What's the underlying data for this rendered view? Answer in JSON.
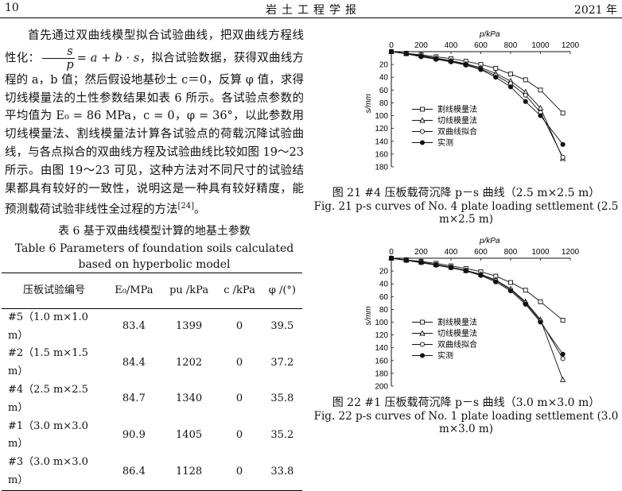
{
  "header": {
    "page": "10",
    "journal": "岩土工程学报",
    "year": "2021 年"
  },
  "body": {
    "p1a": "首先通过双曲线模型拟合试验曲线，把双曲线方程线性化：",
    "frac_num": "s",
    "frac_den": "p",
    "p1b": "= a + b · s",
    "p1c": "，拟合试验数据，获得双曲线方程的 a，b 值；然后假设地基砂土 c＝0，反算 φ 值，求得切线模量法的土性参数结果如表 6 所示。各试验点参数的平均值为 E₀ = 86 MPa，c = 0，φ = 36°，以此参数用切线模量法、割线模量法计算各试验点的荷载沉降试验曲线，与各点拟合的双曲线方程及试验曲线比较如图 19～23 所示。由图 19～23 可见，这种方法对不同尺寸的试验结果都具有较好的一致性，说明这是一种具有较好精度，能预测载荷试验非线性全过程的方法",
    "ref": "[24]",
    "end": "。"
  },
  "table6": {
    "caption_cn": "表 6  基于双曲线模型计算的地基土参数",
    "caption_en": "Table 6 Parameters of foundation soils calculated based on hyperbolic model",
    "headers": [
      "压板试验编号",
      "E₀/MPa",
      "pu /kPa",
      "c /kPa",
      "φ /(°)"
    ],
    "rows": [
      [
        "#5（1.0 m×1.0 m）",
        "83.4",
        "1399",
        "0",
        "39.5"
      ],
      [
        "#2（1.5 m×1.5 m）",
        "84.4",
        "1202",
        "0",
        "37.2"
      ],
      [
        "#4（2.5 m×2.5 m）",
        "84.7",
        "1340",
        "0",
        "35.8"
      ],
      [
        "#1（3.0 m×3.0 m）",
        "90.9",
        "1405",
        "0",
        "35.2"
      ],
      [
        "#3（3.0 m×3.0 m）",
        "86.4",
        "1128",
        "0",
        "33.8"
      ]
    ]
  },
  "figures": {
    "fig21": {
      "caption_cn": "图 21  #4 压板载荷沉降 p－s 曲线（2.5 m×2.5 m）",
      "caption_en": "Fig. 21 p-s curves of No. 4 plate loading settlement (2.5 m×2.5 m)"
    },
    "fig22": {
      "caption_cn": "图 22  #1 压板载荷沉降 p－s 曲线（3.0 m×3.0 m）",
      "caption_en": "Fig. 22 p-s curves of No. 1 plate loading settlement (3.0 m×3.0 m)"
    }
  },
  "chart_data": [
    {
      "type": "line",
      "title": "",
      "xlabel": "p/kPa",
      "ylabel": "s/mm",
      "xlim": [
        0,
        1200
      ],
      "ylim": [
        0,
        180
      ],
      "xticks": [
        0,
        200,
        400,
        600,
        800,
        1000,
        1200
      ],
      "yticks": [
        20,
        40,
        60,
        80,
        100,
        120,
        140,
        160,
        180
      ],
      "x_axis_position": "top",
      "y_inverted": true,
      "legend": "lower-left",
      "series": [
        {
          "name": "割线模量法",
          "marker": "square",
          "x": [
            0,
            100,
            200,
            300,
            400,
            500,
            600,
            700,
            800,
            900,
            1000,
            1150
          ],
          "y": [
            0,
            2.5,
            5,
            8,
            11,
            15,
            20,
            26,
            35,
            44,
            60,
            96
          ]
        },
        {
          "name": "切线模量法",
          "marker": "triangle",
          "x": [
            0,
            100,
            200,
            300,
            400,
            500,
            600,
            700,
            800,
            900,
            1000,
            1150
          ],
          "y": [
            0,
            3,
            6,
            10,
            14,
            19,
            25,
            34,
            46,
            63,
            88,
            167
          ]
        },
        {
          "name": "双曲线拟合",
          "marker": "circle-open",
          "x": [
            0,
            100,
            200,
            300,
            400,
            500,
            600,
            700,
            800,
            900,
            1000,
            1150
          ],
          "y": [
            0,
            3,
            7,
            11,
            15,
            20,
            27,
            37,
            50,
            68,
            95,
            165
          ]
        },
        {
          "name": "实测",
          "marker": "circle-filled",
          "x": [
            0,
            100,
            200,
            300,
            400,
            500,
            600,
            700,
            800,
            900,
            1000,
            1150
          ],
          "y": [
            0,
            3.5,
            8,
            12,
            16,
            21,
            28,
            40,
            55,
            78,
            100,
            145
          ]
        }
      ]
    },
    {
      "type": "line",
      "title": "",
      "xlabel": "p/kPa",
      "ylabel": "s/mm",
      "xlim": [
        0,
        1200
      ],
      "ylim": [
        0,
        200
      ],
      "xticks": [
        0,
        200,
        400,
        600,
        800,
        1000,
        1200
      ],
      "yticks": [
        20,
        40,
        60,
        80,
        100,
        120,
        140,
        160,
        180,
        200
      ],
      "x_axis_position": "top",
      "y_inverted": true,
      "legend": "lower-left",
      "series": [
        {
          "name": "割线模量法",
          "marker": "square",
          "x": [
            0,
            100,
            200,
            300,
            400,
            500,
            600,
            700,
            800,
            900,
            1000,
            1150
          ],
          "y": [
            0,
            2.5,
            5,
            8,
            12,
            16,
            21,
            28,
            38,
            50,
            68,
            97
          ]
        },
        {
          "name": "切线模量法",
          "marker": "triangle",
          "x": [
            0,
            100,
            200,
            300,
            400,
            500,
            600,
            700,
            800,
            900,
            1000,
            1150
          ],
          "y": [
            0,
            3,
            6,
            10,
            14,
            19,
            25,
            34,
            48,
            68,
            96,
            190
          ]
        },
        {
          "name": "双曲线拟合",
          "marker": "circle-open",
          "x": [
            0,
            100,
            200,
            300,
            400,
            500,
            600,
            700,
            800,
            900,
            1000,
            1150
          ],
          "y": [
            0,
            3,
            6,
            10,
            14,
            19,
            26,
            35,
            49,
            70,
            98,
            157
          ]
        },
        {
          "name": "实测",
          "marker": "circle-filled",
          "x": [
            0,
            100,
            200,
            300,
            400,
            500,
            600,
            700,
            800,
            900,
            1000,
            1150
          ],
          "y": [
            0,
            3.5,
            7,
            11,
            15,
            20,
            27,
            37,
            51,
            72,
            100,
            150
          ]
        }
      ]
    }
  ]
}
